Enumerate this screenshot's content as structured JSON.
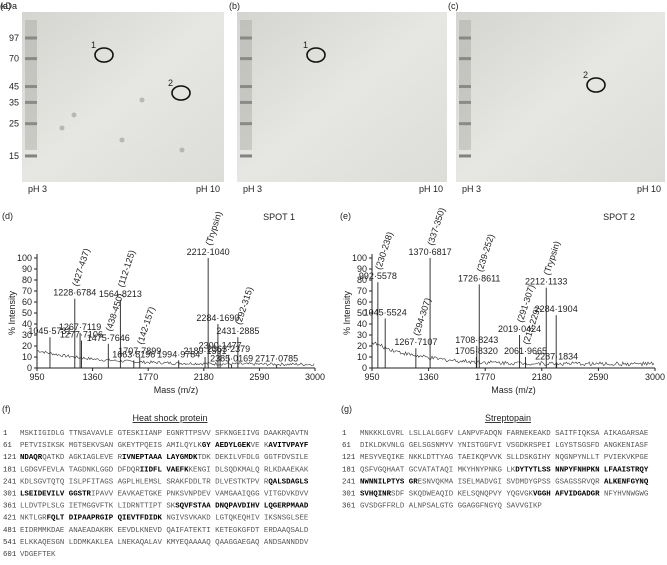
{
  "gels": [
    {
      "label": "(a)",
      "ph_left": "pH 3",
      "ph_right": "pH 10",
      "spots": [
        {
          "label": "1"
        },
        {
          "label": "2"
        }
      ]
    },
    {
      "label": "(b)",
      "ph_left": "pH 3",
      "ph_right": "pH 10",
      "spots": [
        {
          "label": "1"
        }
      ]
    },
    {
      "label": "(c)",
      "ph_left": "pH 3",
      "ph_right": "pH 10",
      "spots": [
        {
          "label": "2"
        }
      ]
    }
  ],
  "kda_label": "kDa",
  "markers": [
    97,
    70,
    45,
    35,
    25,
    15
  ],
  "chart_data": [
    {
      "type": "stem",
      "label": "(d)",
      "spot": "SPOT 1",
      "xlabel": "Mass (m/z)",
      "ylabel": "% Intensity",
      "color": "#222222",
      "xlim": [
        950,
        3000
      ],
      "ylim": [
        0,
        100
      ],
      "xticks": [
        950,
        1360,
        1770,
        2180,
        2590,
        3000
      ],
      "yticks": [
        0,
        10,
        20,
        30,
        40,
        50,
        60,
        70,
        80,
        90,
        100
      ],
      "x": [
        1045.5731,
        1228.6784,
        1267.7119,
        1277.7106,
        1475.7646,
        1564.8213,
        1663.8196,
        1707.7899,
        1994.9784,
        2189.1591,
        2212.104,
        2284.169,
        2300.1477,
        2363.2379,
        2385.0169,
        2431.2885,
        2717.0785
      ],
      "x_labels": [
        "1045·5731",
        "1228·6784",
        "1267·7119",
        "1277·7106",
        "1475·7646",
        "1564·8213",
        "1663·8196",
        "1707·7899",
        "1994·9784",
        "2189·1591",
        "2212·1040",
        "2284·1690",
        "2300·1477",
        "2363·2379",
        "2385·0169",
        "2431·2885",
        "2717·0785"
      ],
      "values": [
        28,
        63,
        32,
        25,
        22,
        62,
        7,
        10,
        7,
        10,
        100,
        40,
        15,
        12,
        3,
        28,
        3
      ],
      "annotations": [
        null,
        "(427-437)",
        null,
        null,
        "(438-450)",
        "(112-125)",
        null,
        "(142-157)",
        null,
        null,
        "(Trypsin)",
        null,
        null,
        null,
        null,
        "(292-315)",
        null
      ]
    },
    {
      "type": "stem",
      "label": "(e)",
      "spot": "SPOT 2",
      "xlabel": "Mass (m/z)",
      "ylabel": "% Intensity",
      "color": "#222222",
      "xlim": [
        950,
        3000
      ],
      "ylim": [
        0,
        100
      ],
      "xticks": [
        950,
        1360,
        1770,
        2180,
        2590,
        3000
      ],
      "yticks": [
        0,
        10,
        20,
        30,
        40,
        50,
        60,
        70,
        80,
        90,
        100
      ],
      "x": [
        992.5578,
        1045.5524,
        1267.7107,
        1370.6817,
        1705.832,
        1708.8243,
        1726.8611,
        2019.0424,
        2061.9665,
        2212.1133,
        2284.1904,
        2287.1834
      ],
      "x_labels": [
        "992·5578",
        "1045·5524",
        "1267·7107",
        "1370·6817",
        "1705·8320",
        "1708·8243",
        "1726·8611",
        "2019·0424",
        "2061·9665",
        "2212·1133",
        "2284·1904",
        "2287·1834"
      ],
      "values": [
        78,
        45,
        18,
        100,
        10,
        20,
        76,
        30,
        10,
        73,
        48,
        5
      ],
      "annotations": [
        "(230-238)",
        null,
        "(294-307)",
        "(337-350)",
        null,
        null,
        "(239-252)",
        "(291-307)",
        "(213-229)",
        "(Trypsin)",
        null,
        null
      ]
    }
  ],
  "sequences": [
    {
      "label": "(f)",
      "title": "Heat shock protein",
      "lines": [
        {
          "n": "1",
          "segs": [
            "MSKIIGIDLG TTNSAVAVLE GTESKIIANP EGNRTTPSVV SFKNGEIIVG DAAKRQAVTN"
          ]
        },
        {
          "n": "61",
          "segs": [
            "PETVISIKSK MGTSEKVSAN GKEYTPQEIS AMILQYLK",
            {
              "b": "GY AEDYLGEK"
            },
            "VE K",
            {
              "b": "AVITVPAYF"
            }
          ]
        },
        {
          "n": "121",
          "segs": [
            {
              "b": "NDAQR"
            },
            "QATKD AGKIAGLEVE R",
            {
              "b": "IVNEPTAAA LAYGMDK"
            },
            "TDK DEKILVFDLG GGTFDVSILE"
          ]
        },
        {
          "n": "181",
          "segs": [
            "LGDGVFEVLA TAGDNKLGGD DFDQR",
            {
              "b": "IIDFL VAEFK"
            },
            "KENGI DLSQDKMALQ RLKDAAEKAK"
          ]
        },
        {
          "n": "241",
          "segs": [
            "KDLSGVTQTQ ISLPFITAGS AGPLHLEMSL SRAKFDDLTR DLVESTKTPV R",
            {
              "b": "QALSDAGLS"
            }
          ]
        },
        {
          "n": "301",
          "segs": [
            {
              "b": "LSEIDEVILV GGSTR"
            },
            "IPAVV EAVKAETGKE PNKSVNPDEV VAMGAAIQGG VITGDVKDVV"
          ]
        },
        {
          "n": "361",
          "segs": [
            "LLDVTPLSLG IETMGGVFTK LIDRNTTIPT SK",
            {
              "b": "SQVFSTAA DNQPAVDIHV LQGERPMAAD"
            }
          ]
        },
        {
          "n": "421",
          "segs": [
            "NKTLGR",
            {
              "b": "FQLT DIPAAPRGIP QIEVTFDIDK"
            },
            " NGIVSVKAKD LGTQKEQHIV IKSNSGLSEE"
          ]
        },
        {
          "n": "481",
          "segs": [
            "EIDRMMKDAE ANAEADAKRK EEVDLKNEVD QAIFATEKTI KETEGKGFDT ERDAAQSALD"
          ]
        },
        {
          "n": "541",
          "segs": [
            "ELKKAQESGN LDDMKAKLEA LNEKAQALAV KMYEQAAAAQ QAAGGAEGAQ ANDSANNDDV"
          ]
        },
        {
          "n": "601",
          "segs": [
            "VDGEFTEK"
          ]
        }
      ]
    },
    {
      "label": "(g)",
      "title": "Streptopain",
      "lines": [
        {
          "n": "1",
          "segs": [
            "MNKKKLGVRL LSLLALGGFV LANPVFADQN FARNEKEAKD SAITFIQKSA AIKAGARSAE"
          ]
        },
        {
          "n": "61",
          "segs": [
            "DIKLDKVNLG GELSGSNMYV YNISTGGFVI VSGDKRSPEI LGYSTSGSFD ANGKENIASF"
          ]
        },
        {
          "n": "121",
          "segs": [
            "MESYVEQIKE NKKLDTTYAG TAEIKQPVVK SLLDSKGIHY NQGNPYNLLT PVIEKVKPGE"
          ]
        },
        {
          "n": "181",
          "segs": [
            "QSFVGQHAAT GCVATATAQI MKYHNYPNKG LK",
            {
              "b": "DYTYTLSS NNPYFNHPKN LFAAISTRQY"
            }
          ]
        },
        {
          "n": "241",
          "segs": [
            {
              "b": "NWNNILPTYS GR"
            },
            "ESNVQKMA ISELMADVGI SVDMDYGPSS GSAGSSRVQR ",
            {
              "b": "ALKENFGYNQ"
            }
          ]
        },
        {
          "n": "301",
          "segs": [
            {
              "b": "SVHQINR"
            },
            "SDF SKQDWEAQID KELSQNQPVY YQGVGK",
            {
              "b": "VGGH AFVIDGADGR"
            },
            " NFYHVNWGWG"
          ]
        },
        {
          "n": "361",
          "segs": [
            "GVSDGFFRLD ALNPSALGTG GGAGGFNGYQ SAVVGIKP"
          ]
        }
      ]
    }
  ]
}
